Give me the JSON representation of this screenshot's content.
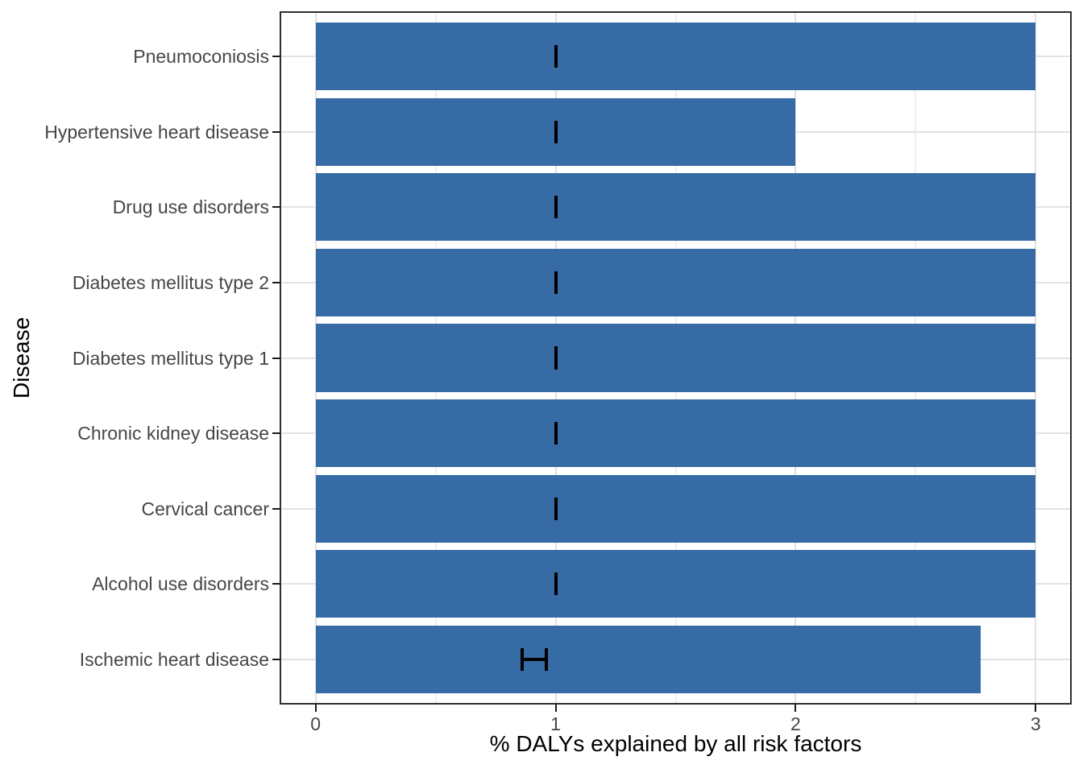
{
  "figure": {
    "background": "#FFFFFF"
  },
  "chart_data": {
    "type": "bar",
    "orientation": "horizontal",
    "title": "",
    "xlabel": "% DALYs explained by all risk factors",
    "ylabel": "Disease",
    "xlim": [
      0,
      3
    ],
    "x_major_ticks": [
      0,
      1,
      2,
      3
    ],
    "x_tick_labels": [
      "0",
      "1",
      "2",
      "3"
    ],
    "x_minor_ticks": [
      0.5,
      1.5,
      2.5
    ],
    "grid": "major and minor vertical, major horizontal per category",
    "legend": "none",
    "categories": [
      "Pneumoconiosis",
      "Hypertensive heart disease",
      "Drug use disorders",
      "Diabetes mellitus type 2",
      "Diabetes mellitus type 1",
      "Chronic kidney disease",
      "Cervical cancer",
      "Alcohol use disorders",
      "Ischemic heart disease"
    ],
    "values": [
      3.0,
      2.0,
      3.0,
      3.0,
      3.0,
      3.0,
      3.0,
      3.0,
      2.77
    ],
    "error_bars": [
      {
        "x": 1.0,
        "xmin": 1.0,
        "xmax": 1.0
      },
      {
        "x": 1.0,
        "xmin": 1.0,
        "xmax": 1.0
      },
      {
        "x": 1.0,
        "xmin": 1.0,
        "xmax": 1.0
      },
      {
        "x": 1.0,
        "xmin": 1.0,
        "xmax": 1.0
      },
      {
        "x": 1.0,
        "xmin": 1.0,
        "xmax": 1.0
      },
      {
        "x": 1.0,
        "xmin": 1.0,
        "xmax": 1.0
      },
      {
        "x": 1.0,
        "xmin": 1.0,
        "xmax": 1.0
      },
      {
        "x": 1.0,
        "xmin": 1.0,
        "xmax": 1.0
      },
      {
        "x": 0.91,
        "xmin": 0.86,
        "xmax": 0.96
      }
    ],
    "colors": {
      "bar_fill": "#376BA6",
      "error_bar": "#000000",
      "grid_major": "#E2E2E2",
      "grid_minor": "#EFEFEF",
      "panel_border": "#2E2E2E",
      "panel_background": "#FFFFFF",
      "tick_mark": "#1A1A1A",
      "tick_label": "#464646",
      "axis_title": "#000000"
    }
  }
}
